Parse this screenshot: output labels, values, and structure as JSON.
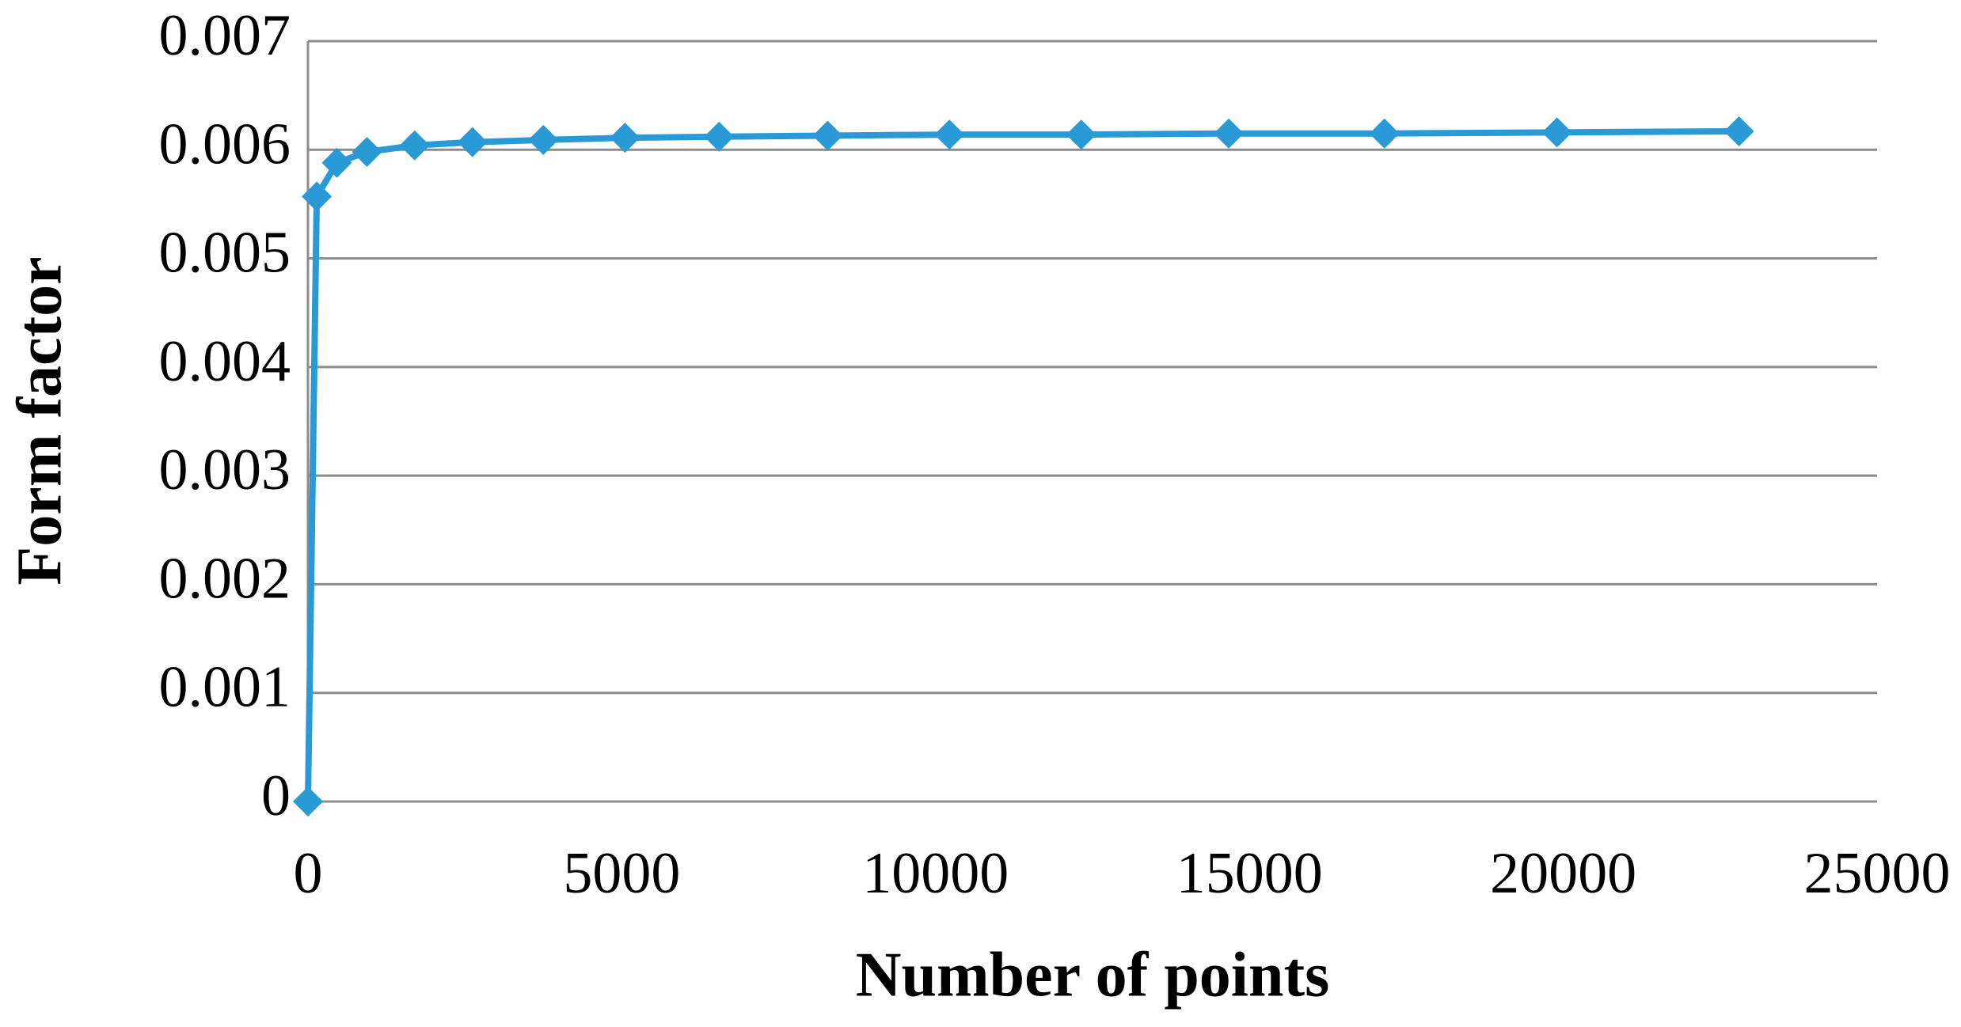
{
  "chart_data": {
    "type": "line",
    "xlabel": "Number of points",
    "ylabel": "Form factor",
    "x": [
      0,
      140,
      460,
      940,
      1700,
      2620,
      3750,
      5050,
      6550,
      8280,
      10220,
      12320,
      14670,
      17150,
      19900,
      22800
    ],
    "series": [
      {
        "color": "#2a9ad6",
        "values": [
          0,
          0.00557,
          0.00588,
          0.00598,
          0.00604,
          0.00607,
          0.00609,
          0.00611,
          0.00612,
          0.00613,
          0.00614,
          0.00614,
          0.00615,
          0.00615,
          0.00616,
          0.00617
        ]
      }
    ],
    "xlim": [
      0,
      25000
    ],
    "xticks": [
      0,
      5000,
      10000,
      15000,
      20000,
      25000
    ],
    "ylim": [
      0,
      0.007
    ],
    "yticks": [
      0,
      0.001,
      0.002,
      0.003,
      0.004,
      0.005,
      0.006,
      0.007
    ],
    "grid": true
  }
}
